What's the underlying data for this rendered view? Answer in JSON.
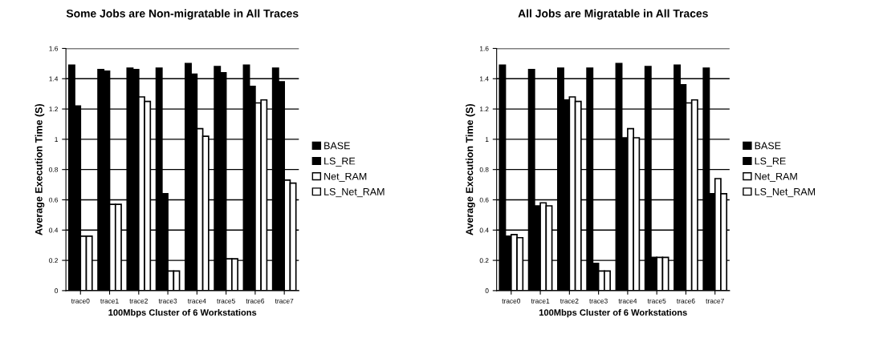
{
  "chart_data": [
    {
      "type": "bar",
      "title": "Some Jobs are Non-migratable in All Traces",
      "xlabel": "100Mbps Cluster of 6 Workstations",
      "ylabel": "Average Execution Time (S)",
      "categories": [
        "trace0",
        "trace1",
        "trace2",
        "trace3",
        "trace4",
        "trace5",
        "trace6",
        "trace7"
      ],
      "series": [
        {
          "name": "BASE",
          "color": "#000000",
          "values": [
            1.49,
            1.46,
            1.47,
            1.47,
            1.5,
            1.48,
            1.49,
            1.47
          ]
        },
        {
          "name": "LS_RE",
          "color": "#000000",
          "values": [
            1.22,
            1.45,
            1.46,
            0.64,
            1.43,
            1.44,
            1.35,
            1.38
          ]
        },
        {
          "name": "Net_RAM",
          "color": "#ffffff",
          "values": [
            0.36,
            0.57,
            1.28,
            0.13,
            1.07,
            0.21,
            1.24,
            0.73
          ]
        },
        {
          "name": "LS_Net_RAM",
          "color": "#ffffff",
          "values": [
            0.36,
            0.57,
            1.25,
            0.13,
            1.02,
            0.21,
            1.26,
            0.71
          ]
        }
      ],
      "ylim": [
        0,
        1.6
      ],
      "yticks": [
        0,
        0.2,
        0.4,
        0.6,
        0.8,
        1,
        1.2,
        1.4,
        1.6
      ],
      "grid": "y",
      "legend": "right"
    },
    {
      "type": "bar",
      "title": "All Jobs are Migratable in All Traces",
      "xlabel": "100Mbps Cluster of 6 Workstations",
      "ylabel": "Average Execution Time (S)",
      "categories": [
        "trace0",
        "trace1",
        "trace2",
        "trace3",
        "trace4",
        "trace5",
        "trace6",
        "trace7"
      ],
      "series": [
        {
          "name": "BASE",
          "color": "#000000",
          "values": [
            1.49,
            1.46,
            1.47,
            1.47,
            1.5,
            1.48,
            1.49,
            1.47
          ]
        },
        {
          "name": "LS_RE",
          "color": "#000000",
          "values": [
            0.36,
            0.56,
            1.26,
            0.18,
            1.01,
            0.22,
            1.36,
            0.64
          ]
        },
        {
          "name": "Net_RAM",
          "color": "#ffffff",
          "values": [
            0.37,
            0.58,
            1.28,
            0.13,
            1.07,
            0.22,
            1.24,
            0.74
          ]
        },
        {
          "name": "LS_Net_RAM",
          "color": "#ffffff",
          "values": [
            0.35,
            0.56,
            1.25,
            0.13,
            1.01,
            0.22,
            1.26,
            0.64
          ]
        }
      ],
      "ylim": [
        0,
        1.6
      ],
      "yticks": [
        0,
        0.2,
        0.4,
        0.6,
        0.8,
        1,
        1.2,
        1.4,
        1.6
      ],
      "grid": "y",
      "legend": "right"
    }
  ]
}
